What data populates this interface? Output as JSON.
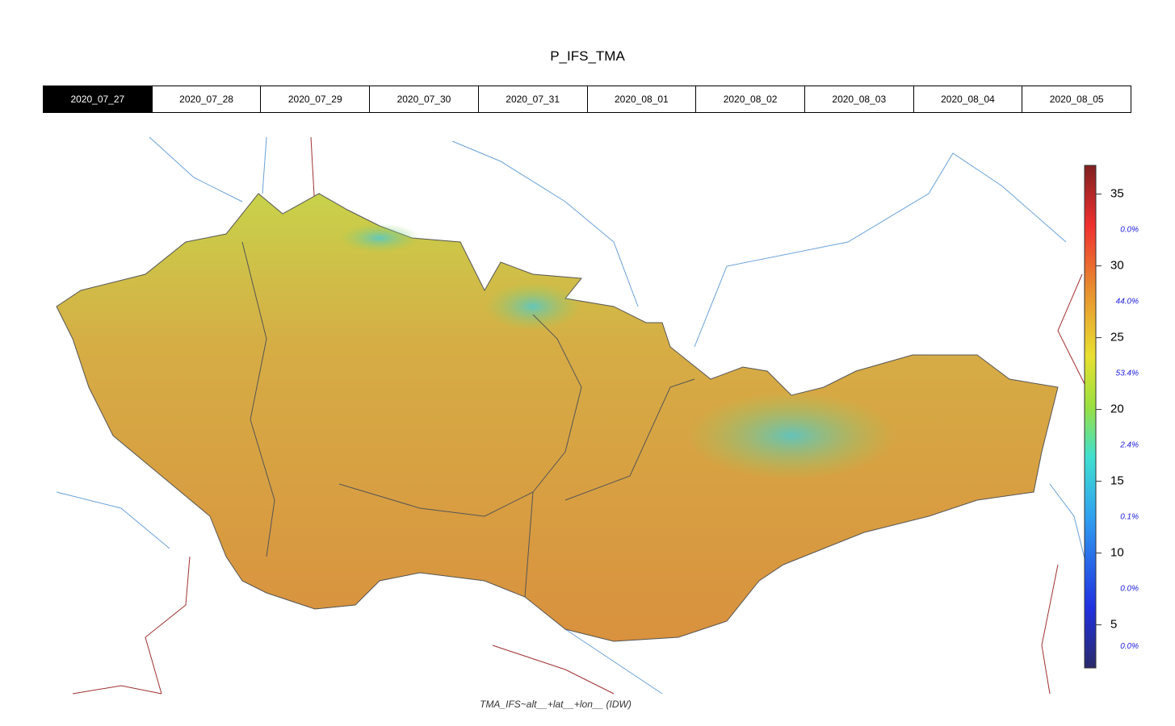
{
  "title": "P_IFS_TMA",
  "tabs": [
    "2020_07_27",
    "2020_07_28",
    "2020_07_29",
    "2020_07_30",
    "2020_07_31",
    "2020_08_01",
    "2020_08_02",
    "2020_08_03",
    "2020_08_04",
    "2020_08_05"
  ],
  "selected_tab": 0,
  "colorbar": {
    "range": [
      2,
      37
    ],
    "ticks": [
      5,
      10,
      15,
      20,
      25,
      30,
      35
    ],
    "shares": [
      "0.0%",
      "44.0%",
      "53.4%",
      "2.4%",
      "0.1%",
      "0.0%",
      "0.0%"
    ]
  },
  "caption": "TMA_IFS~alt__+lat__+lon__ (IDW)"
}
